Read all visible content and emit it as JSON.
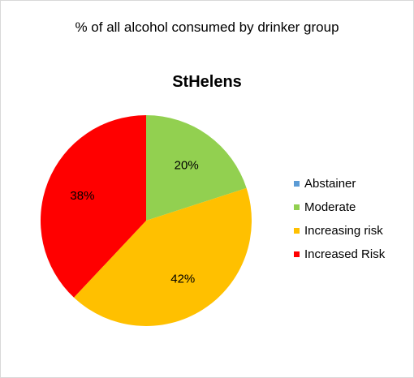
{
  "chart_data": {
    "type": "pie",
    "title": "% of all alcohol consumed  by drinker group",
    "subtitle": "StHelens",
    "categories": [
      "Abstainer",
      "Moderate",
      "Increasing risk",
      "Increased Risk"
    ],
    "values": [
      0,
      20,
      42,
      38
    ],
    "labels": [
      "",
      "20%",
      "42%",
      "38%"
    ],
    "colors": [
      "#5b9bd5",
      "#92d050",
      "#ffc000",
      "#ff0000"
    ],
    "legend_position": "right"
  }
}
